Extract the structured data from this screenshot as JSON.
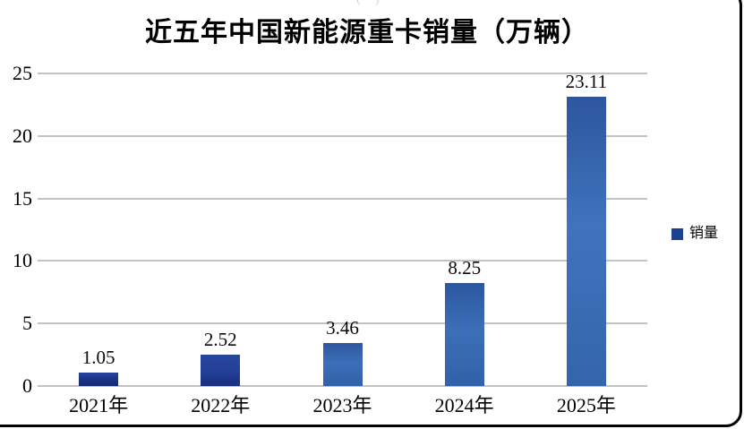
{
  "artifact_top": "( )",
  "chart_data": {
    "type": "bar",
    "title": "近五年中国新能源重卡销量（万辆）",
    "categories": [
      "2021年",
      "2022年",
      "2023年",
      "2024年",
      "2025年"
    ],
    "series": [
      {
        "name": "销量",
        "values": [
          1.05,
          2.52,
          3.46,
          8.25,
          23.11
        ]
      }
    ],
    "value_labels": [
      "1.05",
      "2.52",
      "3.46",
      "8.25",
      "23.11"
    ],
    "xlabel": "",
    "ylabel": "",
    "yticks": [
      0,
      5,
      10,
      15,
      20,
      25
    ],
    "ylim": [
      0,
      25
    ],
    "grid": true,
    "gridline_color": "#c2c2c2",
    "legend": {
      "label": "销量",
      "position": "right",
      "swatch_color": "#1a4193"
    },
    "bar_colors": [
      {
        "top": "#27459c",
        "mid": "#1c3488",
        "bottom": "#16296f"
      },
      {
        "top": "#27459c",
        "mid": "#24419a",
        "bottom": "#1a2f7e"
      },
      {
        "top": "#2d569e",
        "mid": "#3c6fb8",
        "bottom": "#3161a8"
      },
      {
        "top": "#2d569e",
        "mid": "#3c6fb8",
        "bottom": "#3161a8"
      },
      {
        "top": "#2d569e",
        "mid": "#3f74bd",
        "bottom": "#3465ab"
      }
    ]
  }
}
